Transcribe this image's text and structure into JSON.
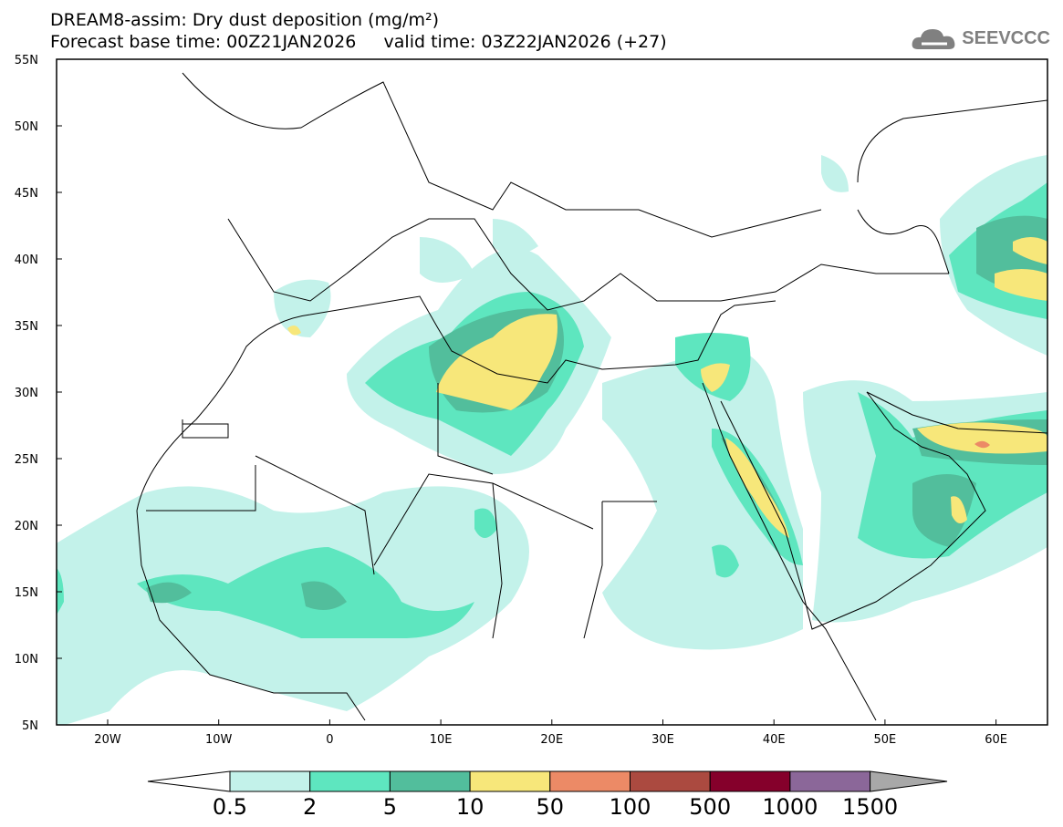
{
  "title": {
    "line1": "DREAM8-assim: Dry dust deposition (mg/m²)",
    "line2": "Forecast base time: 00Z21JAN2026     valid time: 03Z22JAN2026 (+27)"
  },
  "logo": {
    "text": "SEEVCCC"
  },
  "axes": {
    "lat_labels": [
      "55N",
      "50N",
      "45N",
      "40N",
      "35N",
      "30N",
      "25N",
      "20N",
      "15N",
      "10N",
      "5N"
    ],
    "lon_labels": [
      "20W",
      "10W",
      "0",
      "10E",
      "20E",
      "30E",
      "40E",
      "50E",
      "60E"
    ]
  },
  "legend": {
    "levels": [
      "0.5",
      "2",
      "5",
      "10",
      "50",
      "100",
      "500",
      "1000",
      "1500"
    ],
    "colors": [
      "#c3f2ea",
      "#5ee6bf",
      "#52be9c",
      "#f7e77a",
      "#ec8a66",
      "#ab4a40",
      "#85002b",
      "#8b6799"
    ],
    "under_color": "#ffffff",
    "over_color": "#a8a8a8"
  }
}
